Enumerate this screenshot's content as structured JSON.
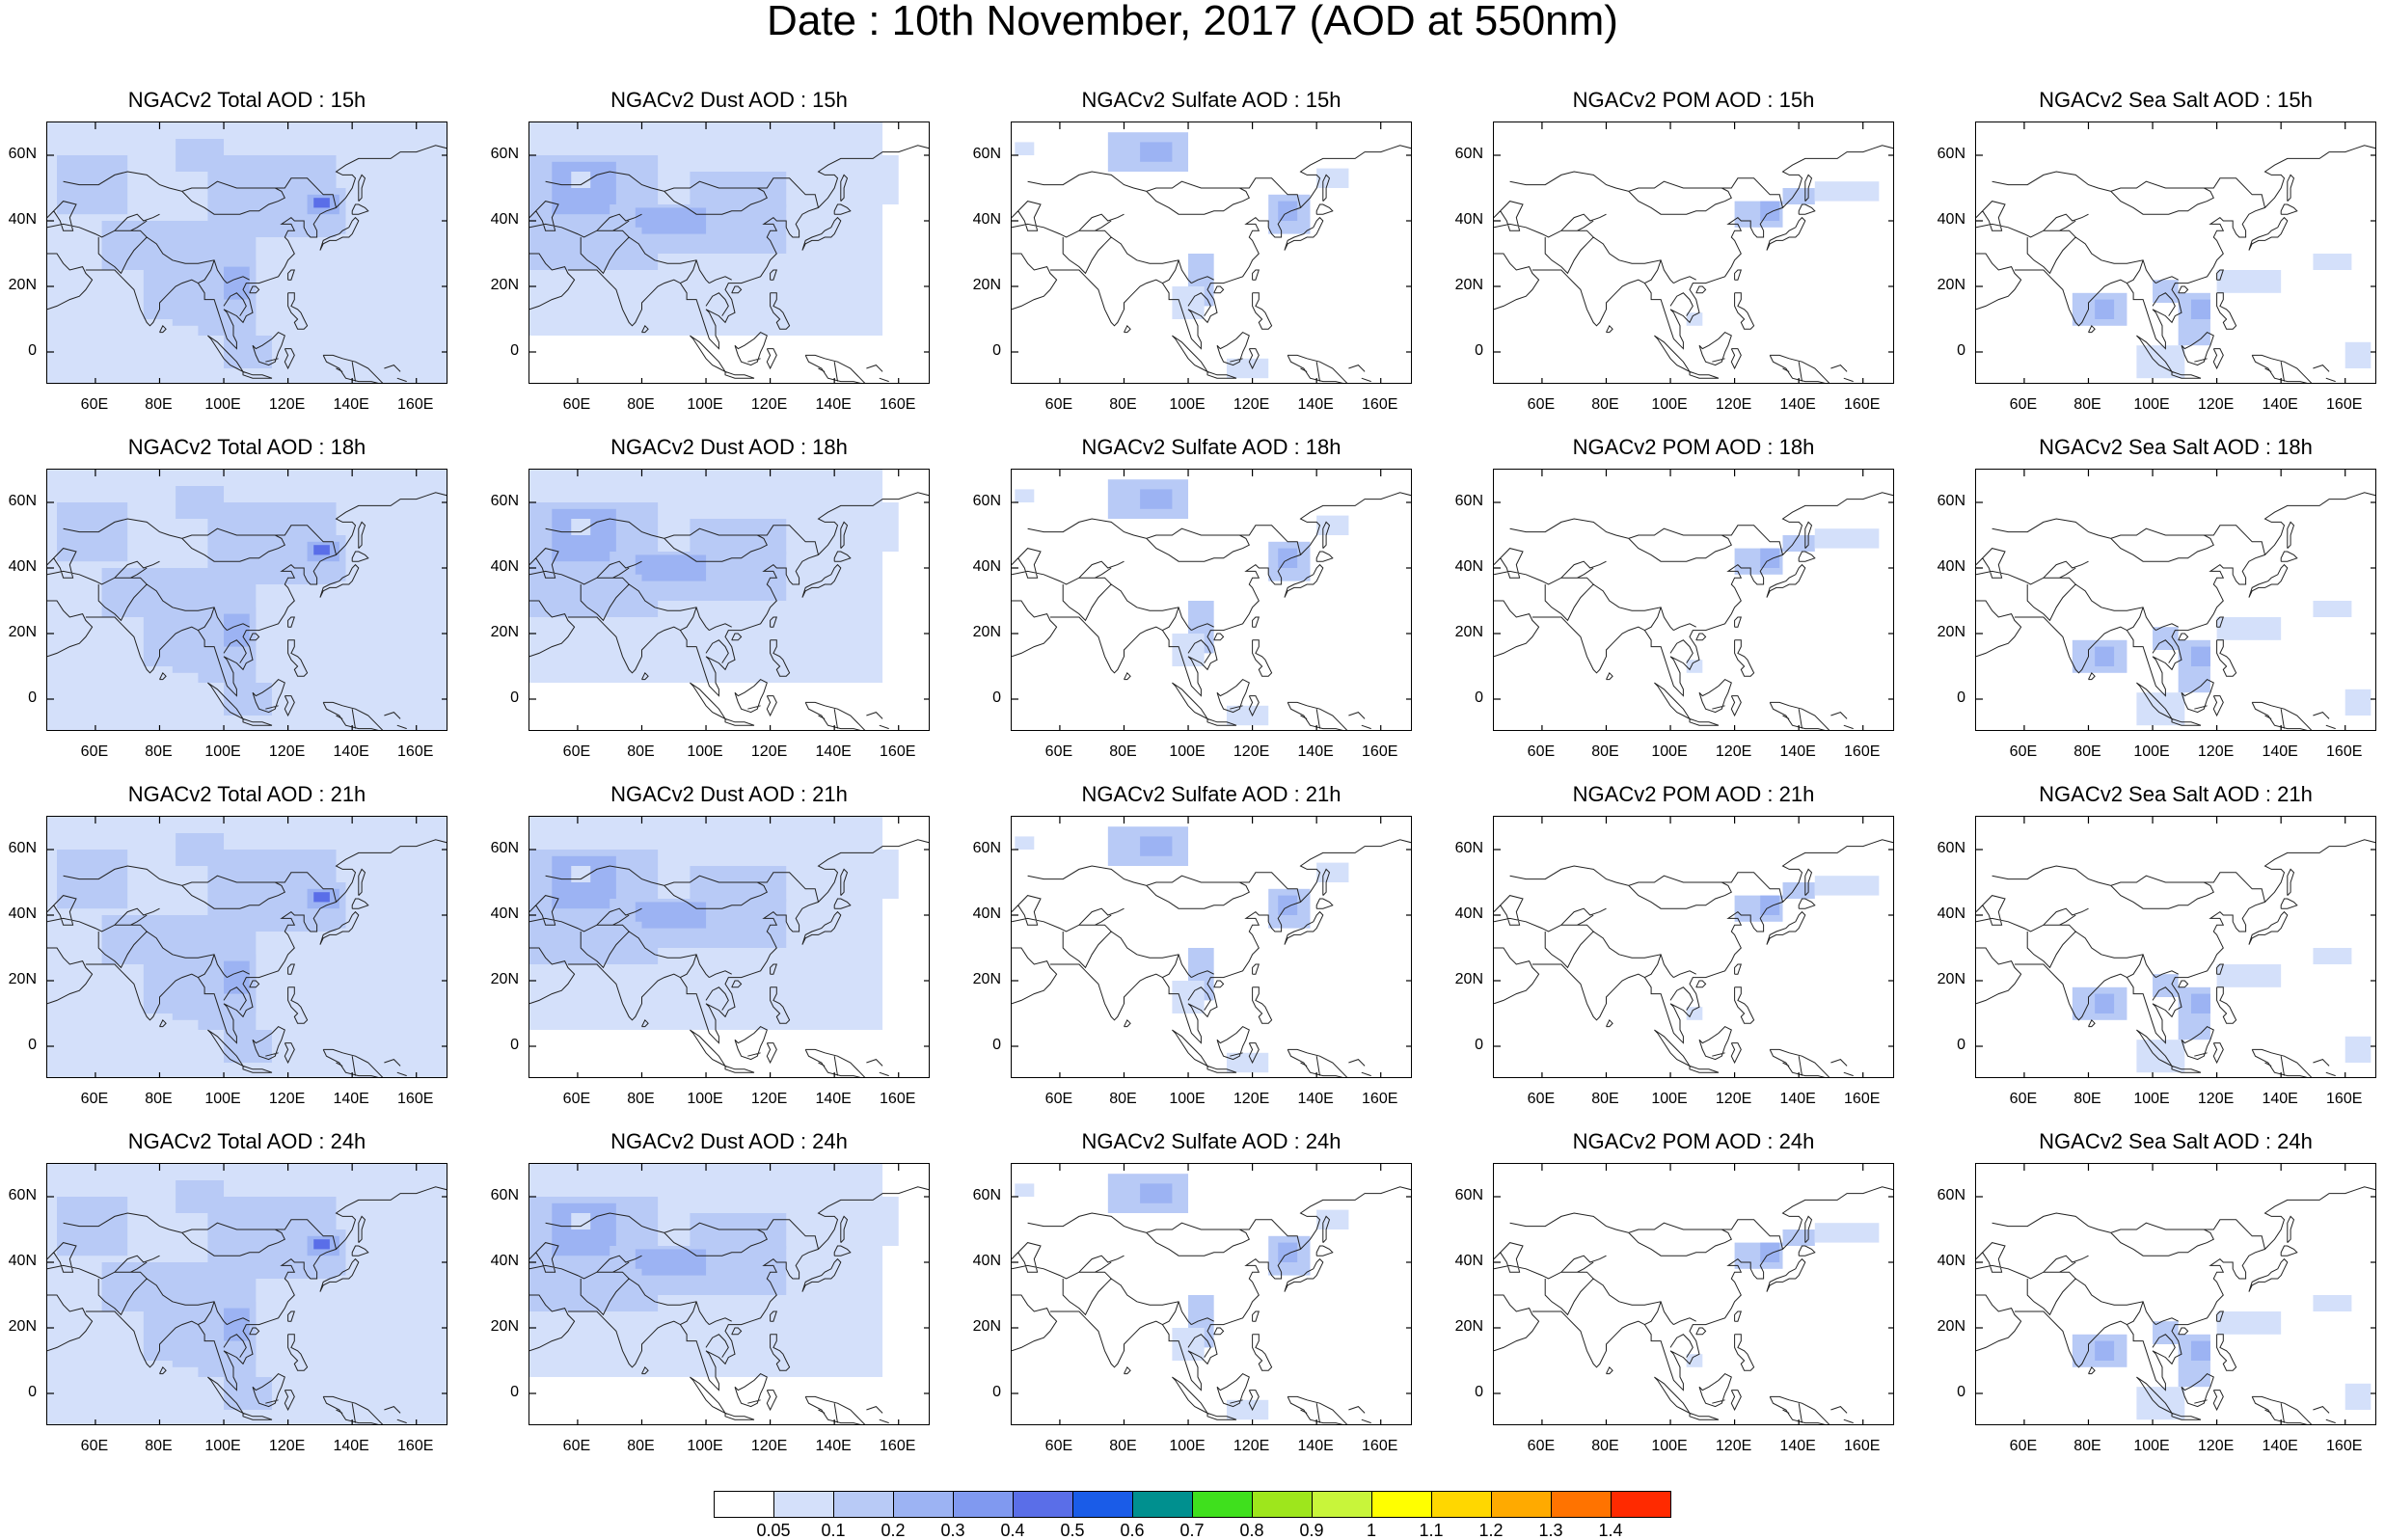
{
  "title": "Date : 10th November, 2017 (AOD at 550nm)",
  "panels": [
    {
      "title": "NGACv2 Total AOD : 15h",
      "field": "total"
    },
    {
      "title": "NGACv2 Dust AOD : 15h",
      "field": "dust"
    },
    {
      "title": "NGACv2 Sulfate AOD : 15h",
      "field": "sulfate"
    },
    {
      "title": "NGACv2 POM AOD : 15h",
      "field": "pom"
    },
    {
      "title": "NGACv2 Sea Salt AOD : 15h",
      "field": "seasalt"
    },
    {
      "title": "NGACv2 Total AOD : 18h",
      "field": "total"
    },
    {
      "title": "NGACv2 Dust AOD : 18h",
      "field": "dust"
    },
    {
      "title": "NGACv2 Sulfate AOD : 18h",
      "field": "sulfate"
    },
    {
      "title": "NGACv2 POM AOD : 18h",
      "field": "pom"
    },
    {
      "title": "NGACv2 Sea Salt AOD : 18h",
      "field": "seasalt"
    },
    {
      "title": "NGACv2 Total AOD : 21h",
      "field": "total"
    },
    {
      "title": "NGACv2 Dust AOD : 21h",
      "field": "dust"
    },
    {
      "title": "NGACv2 Sulfate AOD : 21h",
      "field": "sulfate"
    },
    {
      "title": "NGACv2 POM AOD : 21h",
      "field": "pom"
    },
    {
      "title": "NGACv2 Sea Salt AOD : 21h",
      "field": "seasalt"
    },
    {
      "title": "NGACv2 Total AOD : 24h",
      "field": "total"
    },
    {
      "title": "NGACv2 Dust AOD : 24h",
      "field": "dust"
    },
    {
      "title": "NGACv2 Sulfate AOD : 24h",
      "field": "sulfate"
    },
    {
      "title": "NGACv2 POM AOD : 24h",
      "field": "pom"
    },
    {
      "title": "NGACv2 Sea Salt  AOD : 24h",
      "field": "seasalt"
    }
  ],
  "map": {
    "lon_range": [
      45,
      170
    ],
    "lat_range": [
      -10,
      70
    ],
    "x_ticks": [
      "60E",
      "80E",
      "100E",
      "120E",
      "140E",
      "160E"
    ],
    "y_ticks": [
      "60N",
      "40N",
      "20N",
      "0"
    ]
  },
  "colorbar": {
    "colors": [
      "#ffffff",
      "#d4e0fa",
      "#b8caf6",
      "#9cb3f3",
      "#8099f0",
      "#5a6ee8",
      "#1a5ce8",
      "#00908f",
      "#3fe01d",
      "#9ee61c",
      "#c8f53a",
      "#ffff00",
      "#ffd700",
      "#ffaa00",
      "#ff7300",
      "#ff2a00"
    ],
    "labels": [
      "0.05",
      "0.1",
      "0.2",
      "0.3",
      "0.4",
      "0.5",
      "0.6",
      "0.7",
      "0.8",
      "0.9",
      "1",
      "1.1",
      "1.2",
      "1.3",
      "1.4"
    ]
  }
}
